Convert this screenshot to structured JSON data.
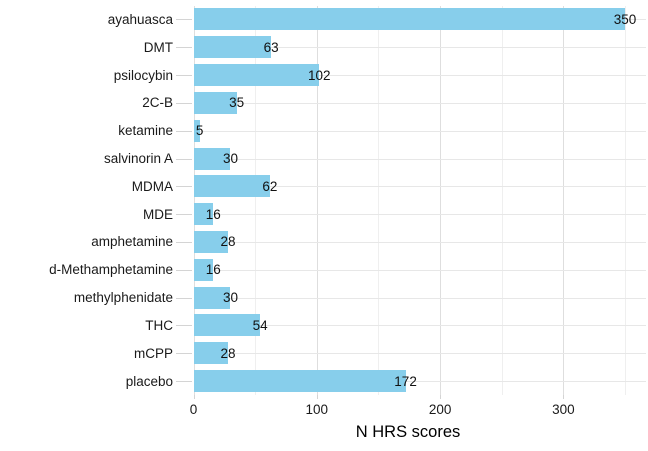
{
  "chart_data": {
    "type": "bar",
    "orientation": "horizontal",
    "title": "",
    "xlabel": "N HRS scores",
    "ylabel": "",
    "categories": [
      "ayahuasca",
      "DMT",
      "psilocybin",
      "2C-B",
      "ketamine",
      "salvinorin A",
      "MDMA",
      "MDE",
      "amphetamine",
      "d-Methamphetamine",
      "methylphenidate",
      "THC",
      "mCPP",
      "placebo"
    ],
    "values": [
      350,
      63,
      102,
      35,
      5,
      30,
      62,
      16,
      28,
      16,
      30,
      54,
      28,
      172
    ],
    "value_labels": [
      "350",
      "63",
      "102",
      "35",
      "5",
      "30",
      "62",
      "16",
      "28",
      "16",
      "30",
      "54",
      "28",
      "172"
    ],
    "x_ticks": [
      0,
      100,
      200,
      300
    ],
    "x_tick_labels": [
      "0",
      "100",
      "200",
      "300"
    ],
    "x_minor_gridlines": [
      50,
      150,
      250,
      350
    ],
    "xlim": [
      0,
      367
    ],
    "grid": true,
    "legend": false,
    "colors": {
      "bar_fill": "#87CEEB",
      "background": "#FFFFFF",
      "major_grid": "#DEDEDE",
      "minor_grid": "#EFEFEF",
      "row_grid": "#E7E7E7",
      "tick_mark": "#D4D4D4",
      "text": "#1A1A1A"
    }
  }
}
